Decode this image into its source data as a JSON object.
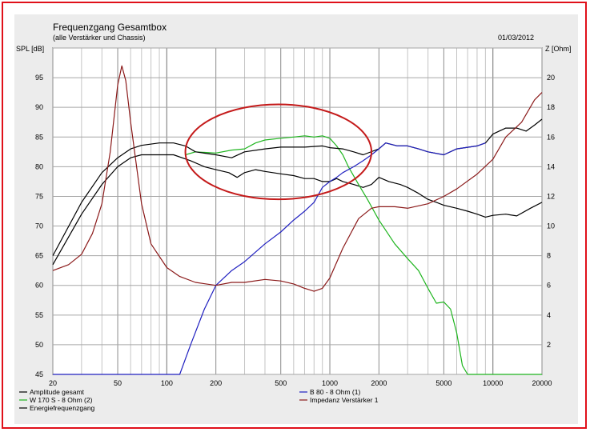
{
  "chart_data": {
    "type": "line",
    "title": "Frequenzgang Gesamtbox",
    "subtitle": "(alle Verstärker und Chassis)",
    "date": "01/03/2012",
    "ylabel_left": "SPL [dB]",
    "ylabel_right": "Z [Ohm]",
    "x_scale": "log",
    "xlim": [
      20,
      20000
    ],
    "ylim_left": [
      45,
      100
    ],
    "ylim_right": [
      0,
      22
    ],
    "x_ticks": [
      20,
      50,
      100,
      200,
      500,
      1000,
      2000,
      5000,
      10000,
      20000
    ],
    "y_ticks_left": [
      45,
      50,
      55,
      60,
      65,
      70,
      75,
      80,
      85,
      90,
      95
    ],
    "y_ticks_right": [
      2,
      4,
      6,
      8,
      10,
      12,
      14,
      16,
      18,
      20
    ],
    "grid": true,
    "legend_placement": "bottom",
    "series": [
      {
        "name": "Amplitude gesamt",
        "color": "#000000",
        "axis": "left",
        "points": [
          [
            20,
            63.5
          ],
          [
            30,
            72
          ],
          [
            40,
            77
          ],
          [
            50,
            80
          ],
          [
            60,
            81.5
          ],
          [
            70,
            82
          ],
          [
            90,
            82
          ],
          [
            110,
            82
          ],
          [
            140,
            81
          ],
          [
            170,
            80
          ],
          [
            200,
            79.5
          ],
          [
            240,
            79
          ],
          [
            270,
            78.2
          ],
          [
            300,
            79
          ],
          [
            350,
            79.5
          ],
          [
            400,
            79.2
          ],
          [
            500,
            78.8
          ],
          [
            600,
            78.5
          ],
          [
            700,
            78
          ],
          [
            800,
            78
          ],
          [
            900,
            77.5
          ],
          [
            1000,
            77.5
          ],
          [
            1100,
            78
          ],
          [
            1200,
            77.5
          ],
          [
            1400,
            77
          ],
          [
            1600,
            76.5
          ],
          [
            1800,
            77
          ],
          [
            2000,
            78.2
          ],
          [
            2300,
            77.5
          ],
          [
            2700,
            77
          ],
          [
            3000,
            76.5
          ],
          [
            3500,
            75.5
          ],
          [
            4000,
            74.5
          ],
          [
            4500,
            74
          ],
          [
            5000,
            73.5
          ],
          [
            6000,
            73
          ],
          [
            7000,
            72.5
          ],
          [
            8000,
            72
          ],
          [
            9000,
            71.5
          ],
          [
            10000,
            71.8
          ],
          [
            12000,
            72
          ],
          [
            14000,
            71.7
          ],
          [
            17000,
            73
          ],
          [
            20000,
            74
          ]
        ]
      },
      {
        "name": "W 170 S - 8 Ohm (2)",
        "color": "#1fb51f",
        "axis": "left",
        "points": [
          [
            130,
            82
          ],
          [
            150,
            82.5
          ],
          [
            200,
            82.3
          ],
          [
            250,
            82.8
          ],
          [
            300,
            83
          ],
          [
            350,
            84
          ],
          [
            400,
            84.5
          ],
          [
            500,
            84.8
          ],
          [
            600,
            85
          ],
          [
            700,
            85.2
          ],
          [
            800,
            85
          ],
          [
            900,
            85.2
          ],
          [
            1000,
            84.8
          ],
          [
            1100,
            83.5
          ],
          [
            1200,
            82
          ],
          [
            1300,
            80
          ],
          [
            1500,
            77
          ],
          [
            1700,
            74.5
          ],
          [
            2000,
            71
          ],
          [
            2500,
            67
          ],
          [
            3000,
            64.5
          ],
          [
            3500,
            62.5
          ],
          [
            4000,
            59.5
          ],
          [
            4500,
            57
          ],
          [
            5000,
            57.2
          ],
          [
            5500,
            56
          ],
          [
            6000,
            52
          ],
          [
            6500,
            46.5
          ],
          [
            7000,
            45
          ],
          [
            10000,
            45
          ],
          [
            20000,
            45
          ]
        ]
      },
      {
        "name": "Energiefrequenzgang",
        "color": "#000000",
        "axis": "left",
        "points": [
          [
            20,
            65
          ],
          [
            30,
            74
          ],
          [
            40,
            79
          ],
          [
            50,
            81.5
          ],
          [
            60,
            83
          ],
          [
            70,
            83.6
          ],
          [
            90,
            84
          ],
          [
            110,
            84
          ],
          [
            130,
            83.5
          ],
          [
            150,
            82.5
          ],
          [
            200,
            82
          ],
          [
            250,
            81.5
          ],
          [
            300,
            82.5
          ],
          [
            400,
            83
          ],
          [
            500,
            83.3
          ],
          [
            700,
            83.3
          ],
          [
            900,
            83.5
          ],
          [
            1000,
            83.2
          ],
          [
            1200,
            83
          ],
          [
            1400,
            82.5
          ],
          [
            1600,
            82
          ],
          [
            2000,
            83
          ],
          [
            2200,
            84
          ],
          [
            2600,
            83.5
          ],
          [
            3000,
            83.5
          ],
          [
            3500,
            83
          ],
          [
            4000,
            82.5
          ],
          [
            5000,
            82
          ],
          [
            6000,
            83
          ],
          [
            8000,
            83.5
          ],
          [
            9000,
            84
          ],
          [
            10000,
            85.5
          ],
          [
            12000,
            86.5
          ],
          [
            14000,
            86.5
          ],
          [
            16000,
            86
          ],
          [
            18000,
            87
          ],
          [
            20000,
            88
          ]
        ]
      },
      {
        "name": "B 80 - 8 Ohm (1)",
        "color": "#2020c0",
        "axis": "left",
        "points": [
          [
            20,
            45
          ],
          [
            100,
            45
          ],
          [
            120,
            45
          ],
          [
            140,
            50
          ],
          [
            170,
            56
          ],
          [
            200,
            60
          ],
          [
            250,
            62.5
          ],
          [
            300,
            64
          ],
          [
            400,
            67
          ],
          [
            500,
            69
          ],
          [
            600,
            71
          ],
          [
            700,
            72.5
          ],
          [
            800,
            74
          ],
          [
            900,
            76.5
          ],
          [
            1000,
            77.5
          ],
          [
            1100,
            78.2
          ],
          [
            1200,
            79
          ],
          [
            1400,
            80
          ],
          [
            1600,
            81
          ],
          [
            1800,
            82
          ],
          [
            2000,
            83
          ],
          [
            2200,
            84
          ],
          [
            2600,
            83.5
          ],
          [
            3000,
            83.5
          ],
          [
            3500,
            83
          ],
          [
            4000,
            82.5
          ],
          [
            5000,
            82
          ],
          [
            6000,
            83
          ],
          [
            8000,
            83.5
          ],
          [
            9000,
            84
          ]
        ]
      },
      {
        "name": "Impedanz Verstärker 1",
        "color": "#8b1a1a",
        "axis": "right",
        "points": [
          [
            20,
            7
          ],
          [
            25,
            7.4
          ],
          [
            30,
            8.1
          ],
          [
            35,
            9.5
          ],
          [
            40,
            11.5
          ],
          [
            45,
            15
          ],
          [
            50,
            19.5
          ],
          [
            53,
            20.8
          ],
          [
            56,
            19.8
          ],
          [
            60,
            17
          ],
          [
            70,
            11.5
          ],
          [
            80,
            8.8
          ],
          [
            100,
            7.2
          ],
          [
            120,
            6.6
          ],
          [
            150,
            6.2
          ],
          [
            200,
            6
          ],
          [
            250,
            6.2
          ],
          [
            300,
            6.2
          ],
          [
            400,
            6.4
          ],
          [
            500,
            6.3
          ],
          [
            600,
            6.1
          ],
          [
            700,
            5.8
          ],
          [
            800,
            5.6
          ],
          [
            900,
            5.8
          ],
          [
            1000,
            6.5
          ],
          [
            1200,
            8.5
          ],
          [
            1500,
            10.5
          ],
          [
            1800,
            11.2
          ],
          [
            2000,
            11.3
          ],
          [
            2500,
            11.3
          ],
          [
            3000,
            11.2
          ],
          [
            4000,
            11.5
          ],
          [
            5000,
            12
          ],
          [
            6000,
            12.5
          ],
          [
            8000,
            13.5
          ],
          [
            10000,
            14.5
          ],
          [
            12000,
            16
          ],
          [
            15000,
            17
          ],
          [
            18000,
            18.5
          ],
          [
            20000,
            19
          ]
        ]
      }
    ],
    "annotation": {
      "shape": "ellipse",
      "color": "#c41a1a",
      "x_range": [
        130,
        1800
      ],
      "y_range_left": [
        74.5,
        90.5
      ]
    }
  }
}
